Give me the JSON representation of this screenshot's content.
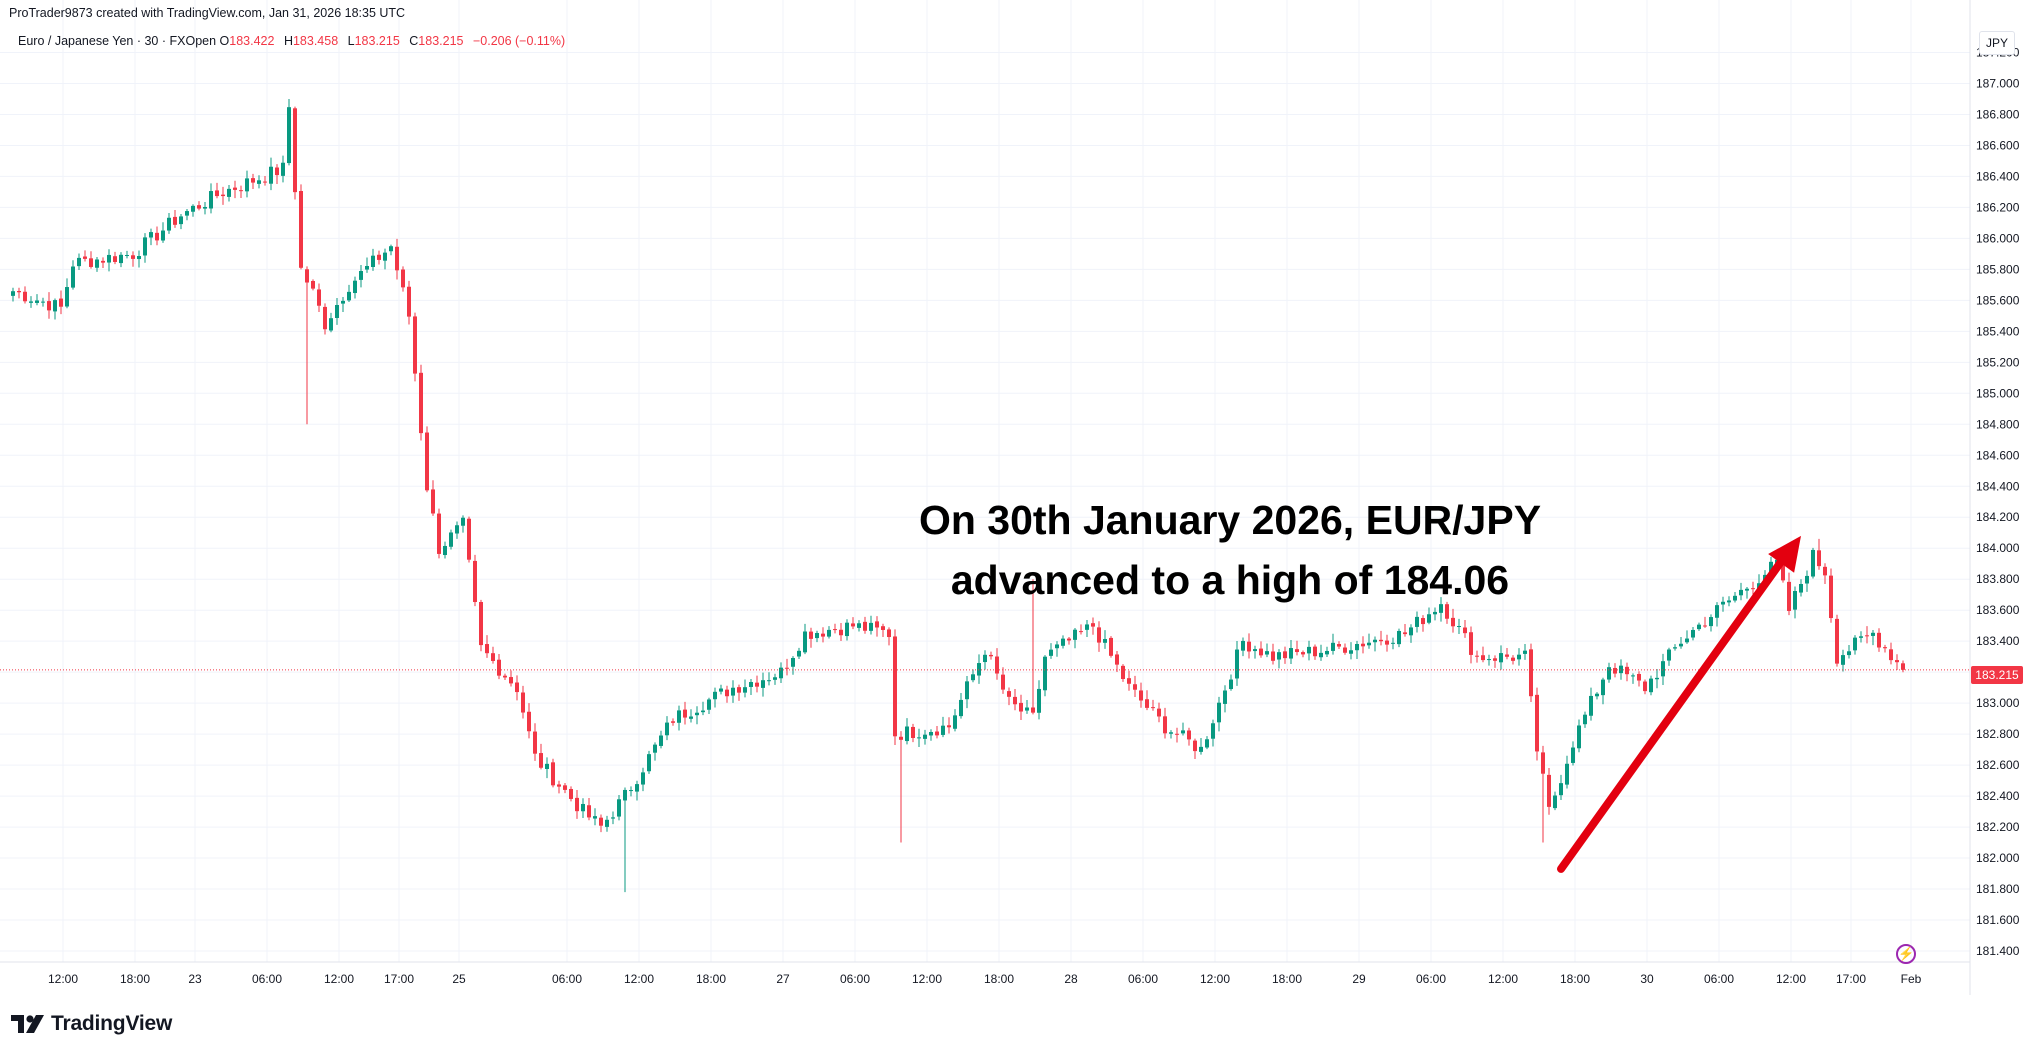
{
  "header": {
    "created_text": "ProTrader9873 created with TradingView.com, Jan 31, 2026 18:35 UTC"
  },
  "instrument": {
    "name": "Euro / Japanese Yen · 30 · FXOpen",
    "open_label": "O",
    "open": "183.422",
    "high_label": "H",
    "high": "183.458",
    "low_label": "L",
    "low": "183.215",
    "close_label": "C",
    "close": "183.215",
    "change": "−0.206 (−0.11%)"
  },
  "currency": "JPY",
  "last_price_tag": "183.215",
  "annotation": {
    "line1": "On 30th January 2026, EUR/JPY",
    "line2": "advanced to a high of 184.06"
  },
  "brand": {
    "name": "TradingView"
  },
  "icons": {
    "logo": "tradingview-logo-icon",
    "flash": "lightning-icon"
  },
  "colors": {
    "up": "#089981",
    "down": "#f23645",
    "arrow": "#e3000f",
    "grid": "#f0f3fa",
    "text": "#131722"
  },
  "chart_data": {
    "type": "candlestick",
    "symbol": "EUR/JPY",
    "interval": "30",
    "ylim": [
      181.3,
      187.4
    ],
    "y_ticks": [
      "187.200",
      "187.000",
      "186.800",
      "186.600",
      "186.400",
      "186.200",
      "186.000",
      "185.800",
      "185.600",
      "185.400",
      "185.200",
      "185.000",
      "184.800",
      "184.600",
      "184.400",
      "184.200",
      "184.000",
      "183.800",
      "183.600",
      "183.400",
      "183.200",
      "183.000",
      "182.800",
      "182.600",
      "182.400",
      "182.200",
      "182.000",
      "181.800",
      "181.600",
      "181.400"
    ],
    "x_ticks": [
      {
        "label": "12:00",
        "bar": 7
      },
      {
        "label": "18:00",
        "bar": 19
      },
      {
        "label": "23",
        "bar": 29
      },
      {
        "label": "06:00",
        "bar": 41
      },
      {
        "label": "12:00",
        "bar": 53
      },
      {
        "label": "17:00",
        "bar": 63
      },
      {
        "label": "25",
        "bar": 73
      },
      {
        "label": "06:00",
        "bar": 91
      },
      {
        "label": "12:00",
        "bar": 103
      },
      {
        "label": "18:00",
        "bar": 115
      },
      {
        "label": "27",
        "bar": 127
      },
      {
        "label": "06:00",
        "bar": 139
      },
      {
        "label": "12:00",
        "bar": 151
      },
      {
        "label": "18:00",
        "bar": 163
      },
      {
        "label": "28",
        "bar": 175
      },
      {
        "label": "06:00",
        "bar": 187
      },
      {
        "label": "12:00",
        "bar": 199
      },
      {
        "label": "18:00",
        "bar": 211
      },
      {
        "label": "29",
        "bar": 223
      },
      {
        "label": "06:00",
        "bar": 235
      },
      {
        "label": "12:00",
        "bar": 247
      },
      {
        "label": "18:00",
        "bar": 259
      },
      {
        "label": "30",
        "bar": 271
      },
      {
        "label": "06:00",
        "bar": 283
      },
      {
        "label": "12:00",
        "bar": 295
      },
      {
        "label": "17:00",
        "bar": 305
      },
      {
        "label": "Feb",
        "bar": 315
      }
    ],
    "last_price": 183.215,
    "arrow": {
      "from": {
        "bar": 258,
        "price": 181.93
      },
      "to": {
        "bar": 298,
        "price": 184.08
      }
    },
    "anchors": [
      [
        0,
        185.66
      ],
      [
        8,
        185.55
      ],
      [
        10,
        185.84
      ],
      [
        20,
        185.9
      ],
      [
        28,
        186.15
      ],
      [
        35,
        186.3
      ],
      [
        45,
        186.45
      ],
      [
        46,
        186.85
      ],
      [
        48,
        185.8
      ],
      [
        50,
        185.65
      ],
      [
        52,
        185.45
      ],
      [
        56,
        185.7
      ],
      [
        63,
        185.95
      ],
      [
        66,
        185.5
      ],
      [
        69,
        184.4
      ],
      [
        71,
        184.0
      ],
      [
        75,
        184.15
      ],
      [
        78,
        183.35
      ],
      [
        84,
        183.1
      ],
      [
        87,
        182.65
      ],
      [
        95,
        182.3
      ],
      [
        98,
        182.2
      ],
      [
        102,
        182.4
      ],
      [
        110,
        182.9
      ],
      [
        120,
        183.1
      ],
      [
        128,
        183.2
      ],
      [
        132,
        183.45
      ],
      [
        140,
        183.5
      ],
      [
        146,
        183.45
      ],
      [
        147,
        182.8
      ],
      [
        156,
        182.85
      ],
      [
        162,
        183.35
      ],
      [
        166,
        183.0
      ],
      [
        170,
        182.9
      ],
      [
        172,
        183.3
      ],
      [
        180,
        183.5
      ],
      [
        186,
        183.1
      ],
      [
        192,
        182.85
      ],
      [
        198,
        182.7
      ],
      [
        205,
        183.4
      ],
      [
        210,
        183.3
      ],
      [
        220,
        183.35
      ],
      [
        232,
        183.45
      ],
      [
        238,
        183.65
      ],
      [
        244,
        183.3
      ],
      [
        252,
        183.3
      ],
      [
        254,
        182.7
      ],
      [
        256,
        182.3
      ],
      [
        260,
        182.75
      ],
      [
        266,
        183.25
      ],
      [
        272,
        183.1
      ],
      [
        278,
        183.4
      ],
      [
        284,
        183.6
      ],
      [
        294,
        183.9
      ],
      [
        296,
        183.6
      ],
      [
        300,
        183.95
      ],
      [
        302,
        183.85
      ],
      [
        304,
        183.3
      ],
      [
        310,
        183.45
      ],
      [
        315,
        183.22
      ]
    ],
    "spikes": [
      {
        "bar": 49,
        "low": 184.8
      },
      {
        "bar": 148,
        "low": 182.1
      },
      {
        "bar": 170,
        "high": 183.8
      },
      {
        "bar": 102,
        "low": 181.78
      },
      {
        "bar": 255,
        "low": 182.1
      },
      {
        "bar": 46,
        "high": 186.9
      },
      {
        "bar": 301,
        "high": 184.06
      }
    ]
  }
}
